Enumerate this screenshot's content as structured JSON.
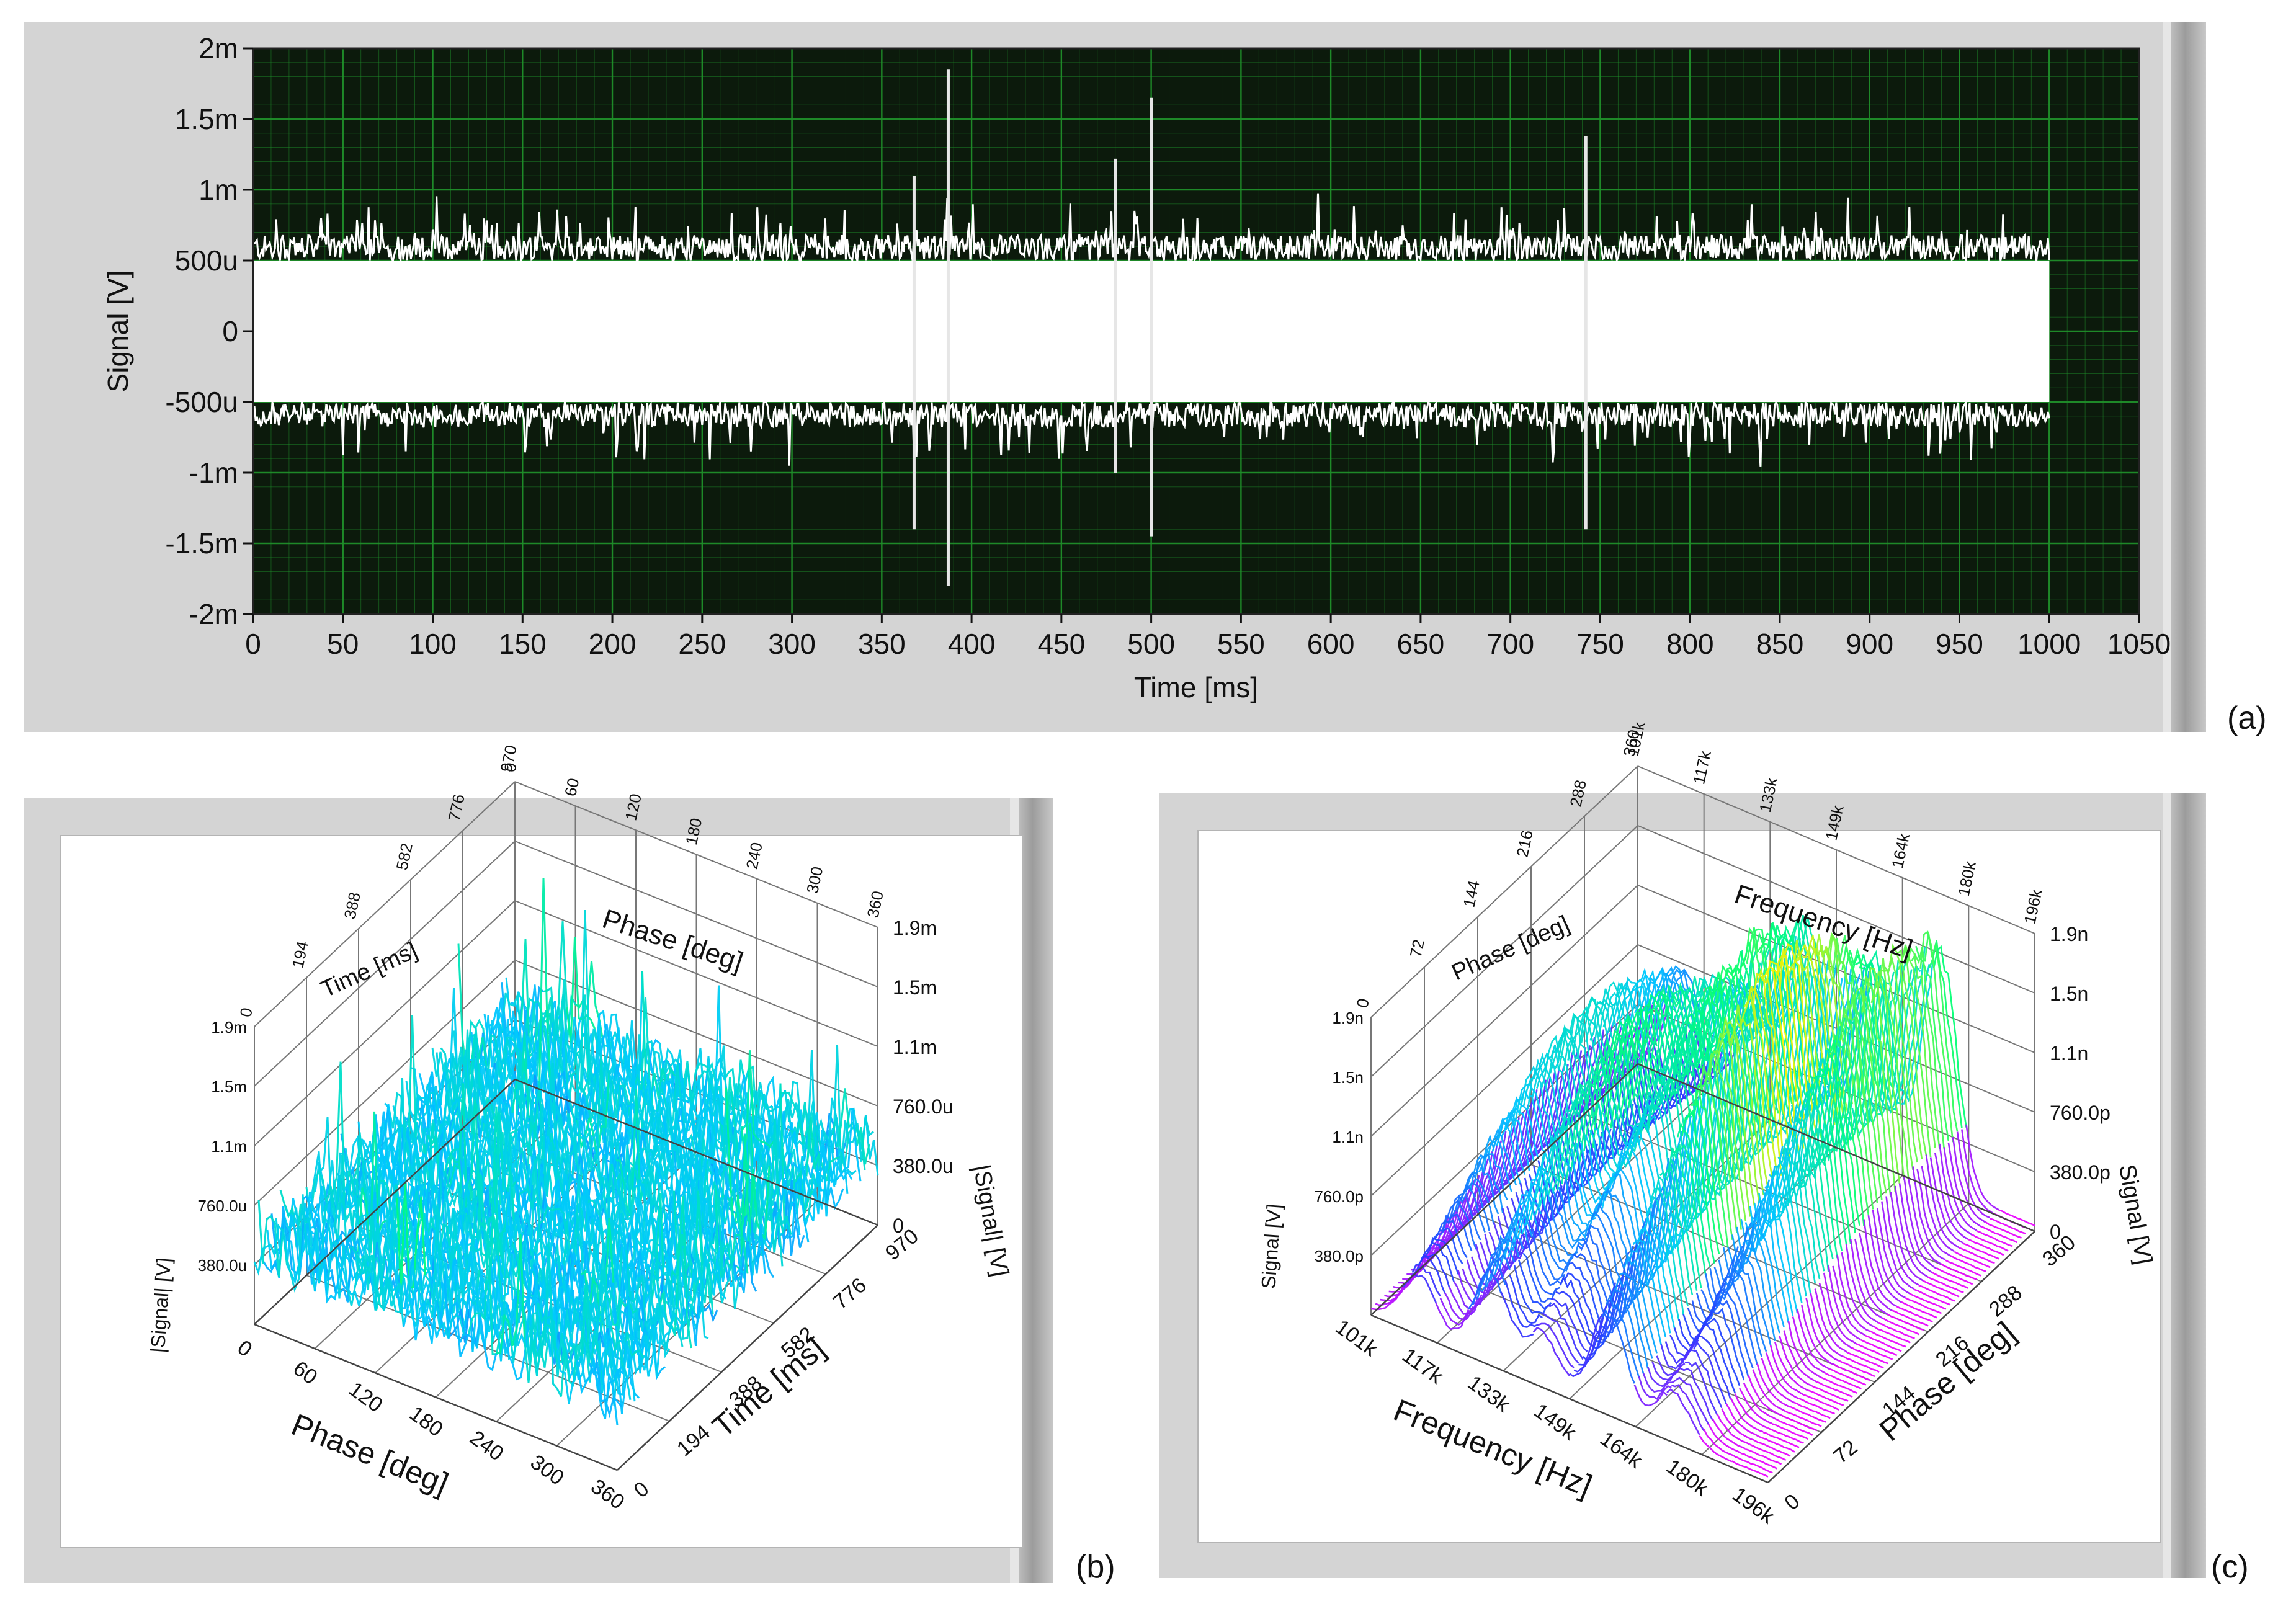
{
  "figure_labels": {
    "a": "(a)",
    "b": "(b)",
    "c": "(c)"
  },
  "colors": {
    "panel_bg": "#d4d4d4",
    "plot_bg": "#0c1a0c",
    "grid": "#1f8f2a",
    "trace": "#ffffff",
    "surface_low": "#ff00ff",
    "surface_mid": "#00ff66",
    "surface_high": "#ff2200"
  },
  "chart_data": [
    {
      "type": "line",
      "id": "a",
      "title": "",
      "xlabel": "Time [ms]",
      "ylabel": "Signal [V]",
      "xlim": [
        0,
        1050
      ],
      "ylim": [
        -0.002,
        0.002
      ],
      "x_ticks": [
        "0",
        "50",
        "100",
        "150",
        "200",
        "250",
        "300",
        "350",
        "400",
        "450",
        "500",
        "550",
        "600",
        "650",
        "700",
        "750",
        "800",
        "850",
        "900",
        "950",
        "1000",
        "1050"
      ],
      "y_ticks": [
        "2m",
        "1.5m",
        "1m",
        "500u",
        "0",
        "-500u",
        "-1m",
        "-1.5m",
        "-2m"
      ],
      "grid": true,
      "series": [
        {
          "name": "Signal",
          "x_range": [
            0,
            1000
          ],
          "envelope_upper": 0.0005,
          "envelope_lower": -0.0005,
          "typical_peak": 0.0008,
          "spikes": [
            {
              "x": 387,
              "y_max": 0.00185,
              "y_min": -0.0018
            },
            {
              "x": 500,
              "y_max": 0.00165,
              "y_min": -0.00145
            },
            {
              "x": 742,
              "y_max": 0.00138,
              "y_min": -0.0014
            },
            {
              "x": 368,
              "y_max": 0.0011,
              "y_min": -0.0014
            },
            {
              "x": 480,
              "y_max": 0.00122,
              "y_min": -0.001
            }
          ]
        }
      ]
    },
    {
      "type": "surface3d",
      "id": "b",
      "x_axis": {
        "label": "Phase [deg]",
        "ticks": [
          "0",
          "60",
          "120",
          "180",
          "240",
          "300",
          "360"
        ]
      },
      "y_axis": {
        "label": "Time [ms]",
        "ticks": [
          "0",
          "194",
          "388",
          "582",
          "776",
          "970"
        ]
      },
      "z_axis": {
        "label": "|Signal| [V]",
        "ticks": [
          "0",
          "380.0u",
          "760.0u",
          "1.1m",
          "1.5m",
          "1.9m"
        ]
      },
      "top_x_axis": {
        "label": "Phase [deg]",
        "ticks": [
          "0",
          "60",
          "120",
          "180",
          "240",
          "300",
          "360"
        ]
      },
      "top_y_axis": {
        "label": "Time [ms]",
        "ticks": [
          "0",
          "194",
          "388",
          "582",
          "776",
          "970"
        ]
      },
      "description_values": {
        "typical_level": 0.0006,
        "max_level": 0.0019
      }
    },
    {
      "type": "surface3d",
      "id": "c",
      "x_axis": {
        "label": "Frequency [Hz]",
        "ticks": [
          "101k",
          "117k",
          "133k",
          "149k",
          "164k",
          "180k",
          "196k"
        ]
      },
      "y_axis": {
        "label": "Phase [deg]",
        "ticks": [
          "0",
          "72",
          "144",
          "216",
          "288",
          "360"
        ]
      },
      "z_axis": {
        "label": "Signal [V]",
        "ticks": [
          "0",
          "380.0p",
          "760.0p",
          "1.1n",
          "1.5n",
          "1.9n"
        ]
      },
      "top_x_axis": {
        "label": "Frequency [Hz]",
        "ticks": [
          "101k",
          "117k",
          "133k",
          "149k",
          "164k",
          "180k",
          "196k"
        ]
      },
      "top_y_axis": {
        "label": "Phase [deg]",
        "ticks": [
          "0",
          "72",
          "144",
          "216",
          "288",
          "360"
        ]
      },
      "peaks": [
        {
          "frequency": 115000,
          "level": 1.2
        },
        {
          "frequency": 125000,
          "level": 1.5
        },
        {
          "frequency": 140000,
          "level": 1.6
        },
        {
          "frequency": 150000,
          "level": 1.9
        },
        {
          "frequency": 165000,
          "level": 1.75
        }
      ]
    }
  ]
}
